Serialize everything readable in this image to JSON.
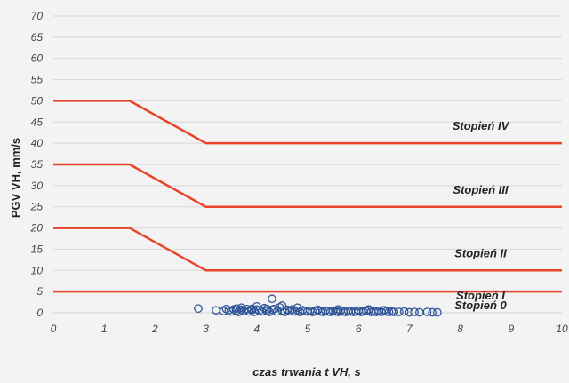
{
  "chart_data": {
    "type": "line",
    "xlabel": "czas trwania t VH, s",
    "ylabel": "PGV VH, mm/s",
    "xlim": [
      0,
      10
    ],
    "ylim": [
      0,
      70
    ],
    "x_ticks": [
      0,
      1,
      2,
      3,
      4,
      5,
      6,
      7,
      8,
      9,
      10
    ],
    "y_ticks": [
      0,
      5,
      10,
      15,
      20,
      25,
      30,
      35,
      40,
      45,
      50,
      55,
      60,
      65,
      70
    ],
    "grid": "horizontal",
    "colors": {
      "threshold": "#e8442a",
      "points": "#2f5597",
      "grid": "#d6d6d6",
      "background": "#f3f3f3"
    },
    "thresholds": [
      {
        "x": [
          0,
          1.5,
          3,
          10
        ],
        "y": [
          50,
          50,
          40,
          40
        ]
      },
      {
        "x": [
          0,
          1.5,
          3,
          10
        ],
        "y": [
          35,
          35,
          25,
          25
        ]
      },
      {
        "x": [
          0,
          1.5,
          3,
          10
        ],
        "y": [
          20,
          20,
          10,
          10
        ]
      },
      {
        "x": [
          0,
          10
        ],
        "y": [
          5,
          5
        ]
      }
    ],
    "zone_labels": [
      {
        "text": "Stopień IV",
        "x": 8.4,
        "y": 42.5
      },
      {
        "text": "Stopień III",
        "x": 8.4,
        "y": 27.5
      },
      {
        "text": "Stopień II",
        "x": 8.4,
        "y": 12.5
      },
      {
        "text": "Stopień I",
        "x": 8.4,
        "y": 2.5
      },
      {
        "text": "Stopień 0",
        "x": 8.4,
        "y": 0.2
      }
    ],
    "scatter": {
      "x": [
        2.85,
        3.2,
        3.35,
        3.4,
        3.45,
        3.5,
        3.55,
        3.6,
        3.65,
        3.7,
        3.75,
        3.8,
        3.85,
        3.9,
        3.95,
        4.0,
        4.05,
        4.1,
        4.15,
        4.2,
        4.25,
        4.3,
        4.35,
        4.4,
        4.45,
        4.5,
        4.55,
        4.6,
        4.65,
        4.7,
        4.75,
        4.8,
        4.85,
        4.9,
        4.95,
        5.0,
        5.05,
        5.1,
        5.15,
        5.2,
        5.25,
        5.3,
        5.35,
        5.4,
        5.45,
        5.5,
        5.55,
        5.6,
        5.65,
        5.7,
        5.75,
        5.8,
        5.85,
        5.9,
        5.95,
        6.0,
        6.05,
        6.1,
        6.15,
        6.2,
        6.25,
        6.3,
        6.35,
        6.4,
        6.45,
        6.5,
        6.55,
        6.6,
        6.65,
        6.7,
        6.8,
        6.9,
        7.0,
        7.1,
        7.2,
        7.35,
        7.45,
        7.55,
        4.3,
        4.0,
        3.7,
        4.5,
        4.8,
        3.6,
        4.2,
        5.2,
        6.2,
        3.9,
        4.6,
        5.6
      ],
      "y": [
        1.0,
        0.6,
        0.4,
        0.9,
        0.6,
        0.3,
        0.8,
        0.5,
        0.2,
        0.7,
        0.4,
        0.9,
        0.3,
        0.6,
        0.2,
        0.8,
        0.5,
        0.3,
        1.1,
        0.4,
        0.2,
        0.7,
        0.9,
        0.3,
        1.3,
        0.5,
        0.2,
        0.6,
        0.4,
        0.8,
        0.3,
        0.5,
        0.2,
        0.6,
        0.4,
        0.3,
        0.5,
        0.2,
        0.4,
        0.6,
        0.3,
        0.2,
        0.5,
        0.3,
        0.2,
        0.4,
        0.3,
        0.2,
        0.5,
        0.3,
        0.2,
        0.4,
        0.3,
        0.2,
        0.3,
        0.5,
        0.2,
        0.3,
        0.4,
        0.8,
        0.2,
        0.3,
        0.2,
        0.4,
        0.2,
        0.6,
        0.3,
        0.2,
        0.3,
        0.2,
        0.2,
        0.3,
        0.1,
        0.2,
        0.1,
        0.2,
        0.1,
        0.1,
        3.3,
        1.5,
        1.2,
        1.7,
        1.2,
        1.0,
        0.9,
        0.7,
        0.6,
        0.9,
        0.7,
        0.8
      ]
    }
  }
}
